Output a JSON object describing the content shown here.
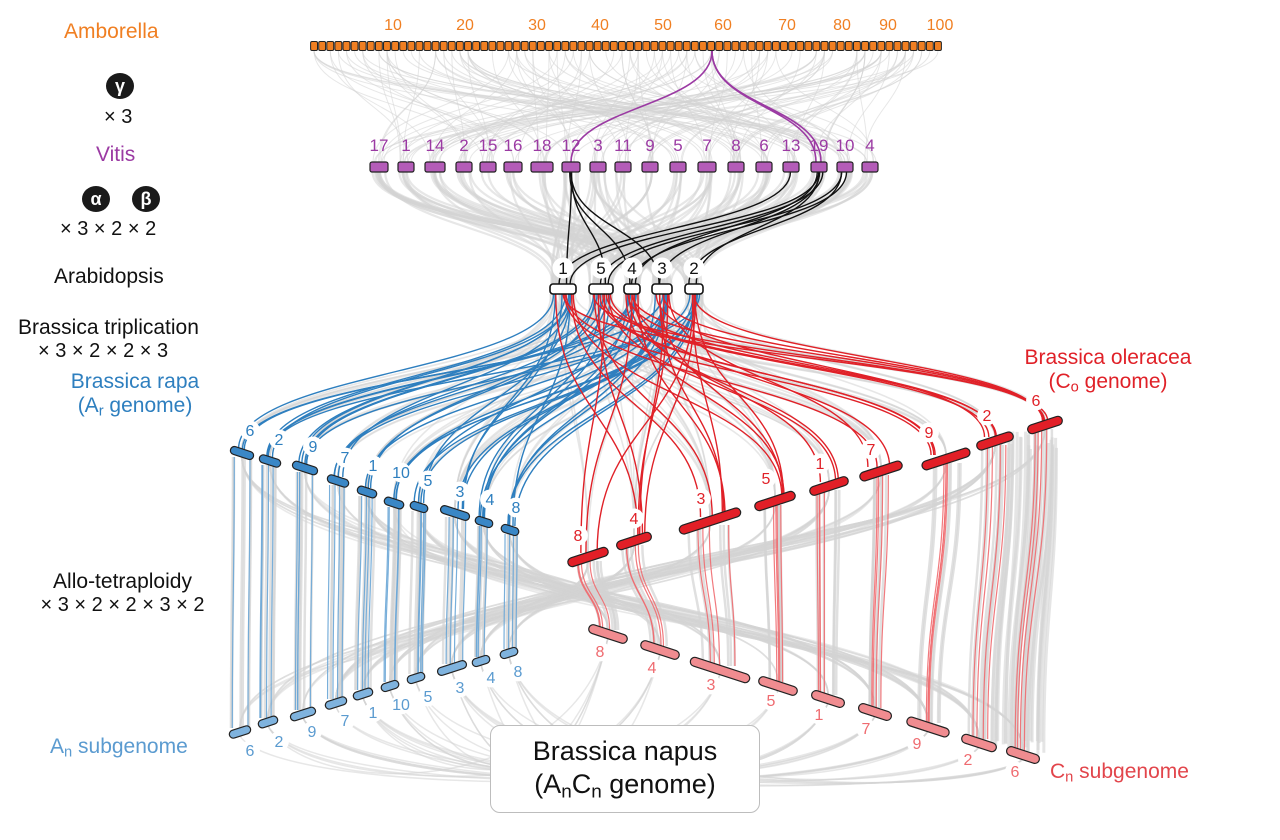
{
  "colors": {
    "amborella": "#f07f22",
    "vitis": "#9b3aa3",
    "arabidopsis": "#111111",
    "rapa": "#2e7fbf",
    "oleracea": "#e02128",
    "an_light": "#6aa6d6",
    "cn_light": "#ef6b70",
    "grey_links": "#d3d3d3"
  },
  "labels": {
    "amborella": "Amborella",
    "gamma_badge": "γ",
    "gamma_mult": "× 3",
    "vitis": "Vitis",
    "alpha_badge": "α",
    "beta_badge": "β",
    "ab_mult": "× 3 ×  2 ×  2",
    "arabidopsis": "Arabidopsis",
    "triplication": "Brassica triplication",
    "triplication_mult": "× 3 ×  2 ×  2 ×  3",
    "rapa": "Brassica rapa",
    "rapa_genome_prefix": "(A",
    "rapa_genome_sub": "r",
    "rapa_genome_suffix": " genome)",
    "oleracea": "Brassica oleracea",
    "oleracea_genome_prefix": "(C",
    "oleracea_genome_sub": "o",
    "oleracea_genome_suffix": " genome)",
    "allo": "Allo-tetraploidy",
    "allo_mult": "× 3 ×  2 ×  2 ×  3 ×  2",
    "an_prefix": "A",
    "an_sub": "n",
    "an_suffix": " subgenome",
    "cn_prefix": "C",
    "cn_sub": "n",
    "cn_suffix": " subgenome",
    "napus_title": "Brassica napus",
    "napus_genome_a": "(A",
    "napus_genome_a_sub": "n",
    "napus_genome_c": "C",
    "napus_genome_c_sub": "n",
    "napus_genome_suffix": " genome)"
  },
  "amborella_ticks": [
    "10",
    "20",
    "30",
    "40",
    "50",
    "60",
    "70",
    "80",
    "90",
    "100"
  ],
  "vitis_chromosomes": [
    "17",
    "1",
    "14",
    "2",
    "15",
    "16",
    "18",
    "12",
    "3",
    "11",
    "9",
    "5",
    "7",
    "8",
    "6",
    "13",
    "19",
    "10",
    "4"
  ],
  "arabidopsis_chromosomes": [
    "1",
    "5",
    "4",
    "3",
    "2"
  ],
  "rapa_chromosomes": [
    "6",
    "2",
    "9",
    "7",
    "1",
    "10",
    "5",
    "3",
    "4",
    "8"
  ],
  "oleracea_chromosomes": [
    "8",
    "4",
    "3",
    "5",
    "1",
    "7",
    "9",
    "2",
    "6"
  ],
  "an_chromosomes": [
    "6",
    "2",
    "9",
    "7",
    "1",
    "10",
    "5",
    "3",
    "4",
    "8"
  ],
  "cn_chromosomes": [
    "8",
    "4",
    "3",
    "5",
    "1",
    "7",
    "9",
    "2",
    "6"
  ]
}
